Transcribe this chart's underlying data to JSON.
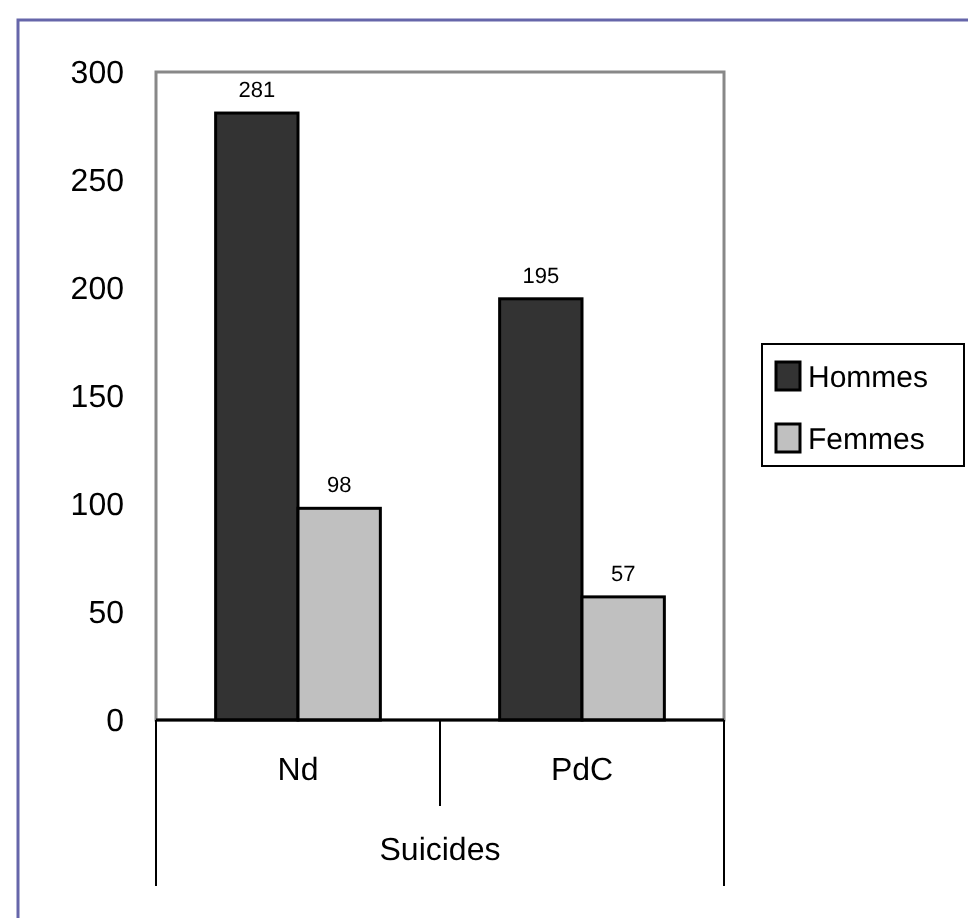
{
  "chart_data": {
    "type": "bar",
    "xlabel": "Suicides",
    "categories": [
      "Nd",
      "PdC"
    ],
    "series": [
      {
        "name": "Hommes",
        "color": "#333333",
        "values": [
          281,
          195
        ]
      },
      {
        "name": "Femmes",
        "color": "#c0c0c0",
        "values": [
          98,
          57
        ]
      }
    ],
    "ylim": [
      0,
      300
    ],
    "yticks": [
      0,
      50,
      100,
      150,
      200,
      250,
      300
    ],
    "data_labels": true,
    "legend": "right",
    "grid": false
  }
}
